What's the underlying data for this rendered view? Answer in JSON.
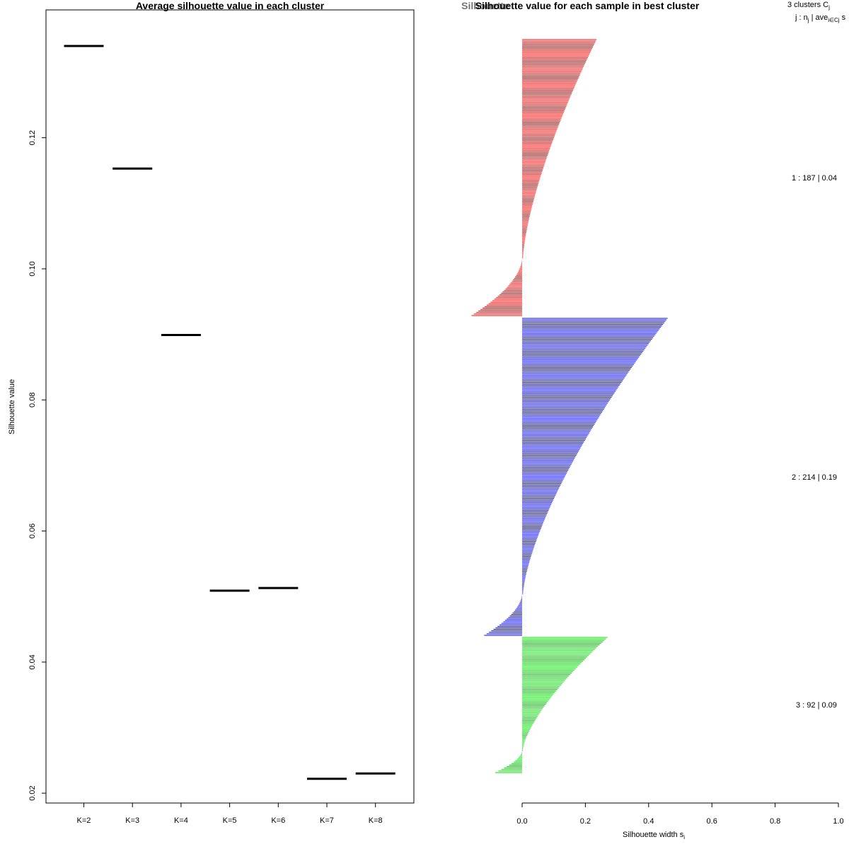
{
  "chart_data": [
    {
      "type": "scatter",
      "title": "Average silhouette value in each cluster",
      "xlabel": "",
      "ylabel": "Silhouette value",
      "categories": [
        "K=2",
        "K=3",
        "K=4",
        "K=5",
        "K=6",
        "K=7",
        "K=8"
      ],
      "values": [
        0.134,
        0.1153,
        0.0899,
        0.0509,
        0.0513,
        0.0222,
        0.023
      ],
      "ylim": [
        0.0185,
        0.1395
      ],
      "yticks": [
        0.02,
        0.04,
        0.06,
        0.08,
        0.1,
        0.12
      ],
      "ytick_labels": [
        "0.02",
        "0.04",
        "0.06",
        "0.08",
        "0.10",
        "0.12"
      ],
      "marker": "horizontal segment",
      "color": "#000000"
    },
    {
      "type": "bar",
      "orientation": "horizontal",
      "title": "Silhouette value for each sample in best cluster",
      "overlapped_title": "Silhouette",
      "xlabel": "Silhouette width s",
      "xlabel_subscript": "i",
      "xlim": [
        0.0,
        1.0
      ],
      "xticks": [
        0.0,
        0.2,
        0.4,
        0.6,
        0.8,
        1.0
      ],
      "xtick_labels": [
        "0.0",
        "0.2",
        "0.4",
        "0.6",
        "0.8",
        "1.0"
      ],
      "legend": {
        "line1": "3  clusters  C",
        "line1_sub": "j",
        "line2": "j :  n",
        "line2_sub": "j",
        "line2_rest": " | ave",
        "line2_sub2": "i∈Cj",
        "line2_end": "  s"
      },
      "clusters": [
        {
          "label": "1 :  187  |  0.04",
          "n": 187,
          "color": "#ff0000",
          "pos_max": 0.235,
          "pos_min": 0.003,
          "neg_min": -0.16,
          "frac_pos": 0.79
        },
        {
          "label": "2 :  214  |  0.19",
          "n": 214,
          "color": "#0000ff",
          "pos_max": 0.46,
          "pos_min": 0.003,
          "neg_min": -0.12,
          "frac_pos": 0.87
        },
        {
          "label": "3 :  92  |  0.09",
          "n": 92,
          "color": "#00e000",
          "pos_max": 0.27,
          "pos_min": 0.002,
          "neg_min": -0.085,
          "frac_pos": 0.84
        }
      ]
    }
  ]
}
